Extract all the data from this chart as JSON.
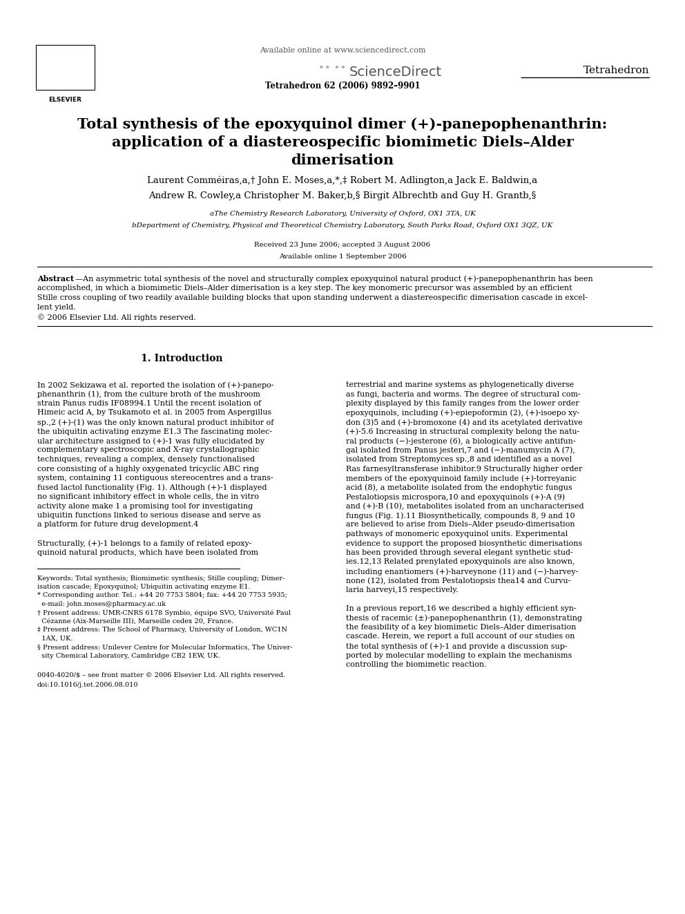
{
  "bg_color": "#ffffff",
  "fig_width": 9.92,
  "fig_height": 13.23,
  "dpi": 100,
  "header_available": "Available online at www.sciencedirect.com",
  "header_sciencedirect": "ScienceDirect",
  "header_journal": "Tetrahedron",
  "header_issue": "Tetrahedron 62 (2006) 9892–9901",
  "title_line1": "Total synthesis of the epoxyquinol dimer (+)-panepophenanthrin:",
  "title_line2": "application of a diastereospecific biomimetic Diels–Alder",
  "title_line3": "dimerisation",
  "author_line1": "Laurent Comméiras,a,† John E. Moses,a,*,‡ Robert M. Adlington,a Jack E. Baldwin,a",
  "author_line2": "Andrew R. Cowley,a Christopher M. Baker,b,§ Birgit Albrechtb and Guy H. Grantb,§",
  "affil_a": "aThe Chemistry Research Laboratory, University of Oxford, OX1 3TA, UK",
  "affil_b": "bDepartment of Chemistry, Physical and Theoretical Chemistry Laboratory, South Parks Road, Oxford OX1 3QZ, UK",
  "date_received": "Received 23 June 2006; accepted 3 August 2006",
  "date_available": "Available online 1 September 2006",
  "abstract_bold": "Abstract",
  "abstract_dash": "—An asymmetric total synthesis of the novel and structurally complex epoxyquinol natural product (+)-panepophenanthrin has been",
  "abstract_lines": [
    "accomplished, in which a biomimetic Diels–Alder dimerisation is a key step. The key monomeric precursor was assembled by an efficient",
    "Stille cross coupling of two readily available building blocks that upon standing underwent a diastereospecific dimerisation cascade in excel-",
    "lent yield.",
    "© 2006 Elsevier Ltd. All rights reserved."
  ],
  "sec1_title": "1. Introduction",
  "left_col": [
    "In 2002 Sekizawa et al. reported the isolation of (+)-panepo-",
    "phenanthrin (1), from the culture broth of the mushroom",
    "strain Panus rudis IF08994.1 Until the recent isolation of",
    "Himeic acid A, by Tsukamoto et al. in 2005 from Aspergillus",
    "sp.,2 (+)-(1) was the only known natural product inhibitor of",
    "the ubiquitin activating enzyme E1.3 The fascinating molec-",
    "ular architecture assigned to (+)-1 was fully elucidated by",
    "complementary spectroscopic and X-ray crystallographic",
    "techniques, revealing a complex, densely functionalised",
    "core consisting of a highly oxygenated tricyclic ABC ring",
    "system, containing 11 contiguous stereocentres and a trans-",
    "fused lactol functionality (Fig. 1). Although (+)-1 displayed",
    "no significant inhibitory effect in whole cells, the in vitro",
    "activity alone make 1 a promising tool for investigating",
    "ubiquitin functions linked to serious disease and serve as",
    "a platform for future drug development.4",
    "",
    "Structurally, (+)-1 belongs to a family of related epoxy-",
    "quinoid natural products, which have been isolated from"
  ],
  "right_col": [
    "terrestrial and marine systems as phylogenetically diverse",
    "as fungi, bacteria and worms. The degree of structural com-",
    "plexity displayed by this family ranges from the lower order",
    "epoxyquinols, including (+)-epiepoformin (2), (+)-isoepo xy-",
    "don (3)5 and (+)-bromoxone (4) and its acetylated derivative",
    "(+)-5.6 Increasing in structural complexity belong the natu-",
    "ral products (−)-jesterone (6), a biologically active antifun-",
    "gal isolated from Panus jesteri,7 and (−)-manumycin A (7),",
    "isolated from Streptomyces sp.,8 and identified as a novel",
    "Ras farnesyltransferase inhibitor.9 Structurally higher order",
    "members of the epoxyquinoid family include (+)-torreyanic",
    "acid (8), a metabolite isolated from the endophytic fungus",
    "Pestalotiopsis microspora,10 and epoxyquinols (+)-A (9)",
    "and (+)-B (10), metabolites isolated from an uncharacterised",
    "fungus (Fig. 1).11 Biosynthetically, compounds 8, 9 and 10",
    "are believed to arise from Diels–Alder pseudo-dimerisation",
    "pathways of monomeric epoxyquinol units. Experimental",
    "evidence to support the proposed biosynthetic dimerisations",
    "has been provided through several elegant synthetic stud-",
    "ies.12,13 Related prenylated epoxyquinols are also known,",
    "including enantiomers (+)-harveynone (11) and (−)-harvey-",
    "none (12), isolated from Pestalotiopsis thea14 and Curvu-",
    "laria harveyi,15 respectively.",
    "",
    "In a previous report,16 we described a highly efficient syn-",
    "thesis of racemic (±)-panepophenanthrin (1), demonstrating",
    "the feasibility of a key biomimetic Diels–Alder dimerisation",
    "cascade. Herein, we report a full account of our studies on",
    "the total synthesis of (+)-1 and provide a discussion sup-",
    "ported by molecular modelling to explain the mechanisms",
    "controlling the biomimetic reaction."
  ],
  "fn_lines": [
    "Keywords: Total synthesis; Biomimetic synthesis; Stille coupling; Dimer-",
    "isation cascade; Epoxyquinol; Ubiquitin activating enzyme E1.",
    "* Corresponding author. Tel.: +44 20 7753 5804; fax: +44 20 7753 5935;",
    "  e-mail: john.moses@pharmacy.ac.uk",
    "† Present address: UMR-CNRS 6178 Symbio, équipe SVO, Université Paul",
    "  Cézanne (Aix-Marseille III), Marseille cedex 20, France.",
    "‡ Present address: The School of Pharmacy, University of London, WC1N",
    "  1AX, UK.",
    "§ Present address: Unilever Centre for Molecular Informatics, The Univer-",
    "  sity Chemical Laboratory, Cambridge CB2 1EW, UK."
  ],
  "footer1": "0040-4020/$ – see front matter © 2006 Elsevier Ltd. All rights reserved.",
  "footer2": "doi:10.1016/j.tet.2006.08.010"
}
